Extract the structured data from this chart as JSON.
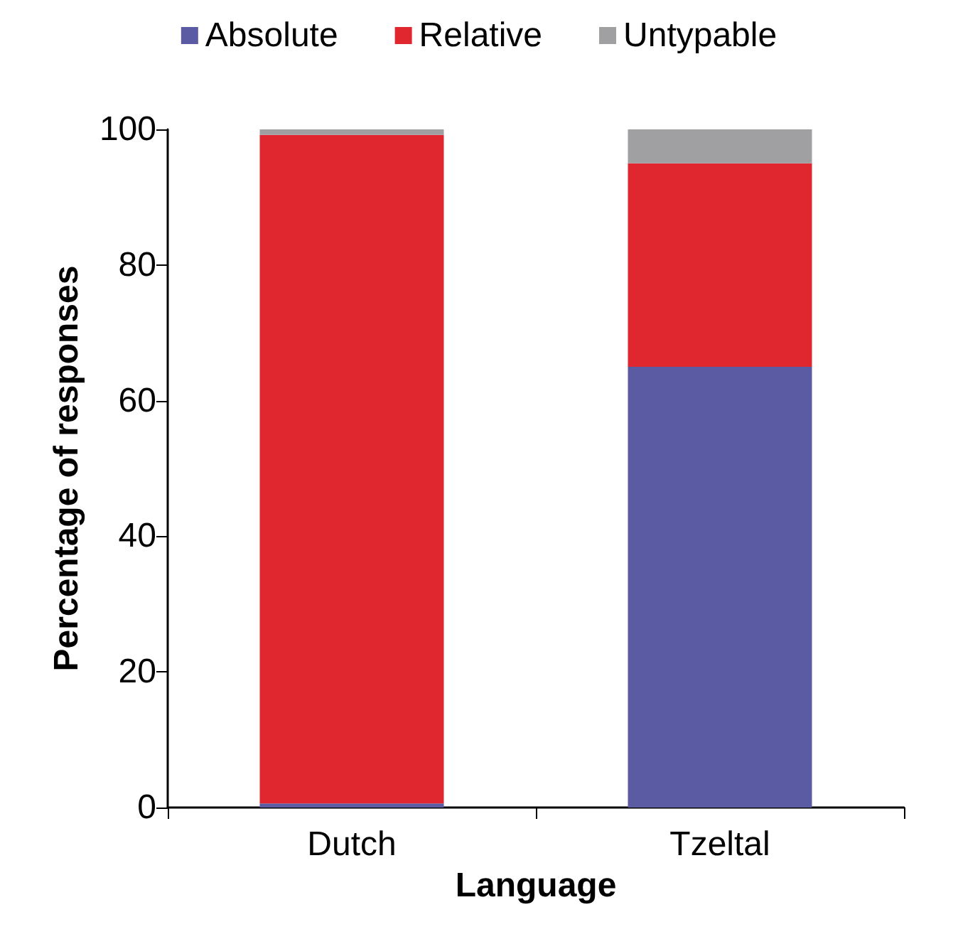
{
  "chart_data": {
    "type": "bar",
    "stacked": true,
    "xlabel": "Language",
    "ylabel": "Percentage of responses",
    "categories": [
      "Dutch",
      "Tzeltal"
    ],
    "series": [
      {
        "name": "Absolute",
        "color": "#5a5ba3",
        "values": [
          0.6,
          65
        ]
      },
      {
        "name": "Relative",
        "color": "#e0262f",
        "values": [
          98.6,
          30
        ]
      },
      {
        "name": "Untypable",
        "color": "#a0a0a3",
        "values": [
          0.8,
          5
        ]
      }
    ],
    "ylim": [
      0,
      100
    ],
    "yticks": [
      0,
      20,
      40,
      60,
      80,
      100
    ],
    "grid": false,
    "legend": "top"
  }
}
